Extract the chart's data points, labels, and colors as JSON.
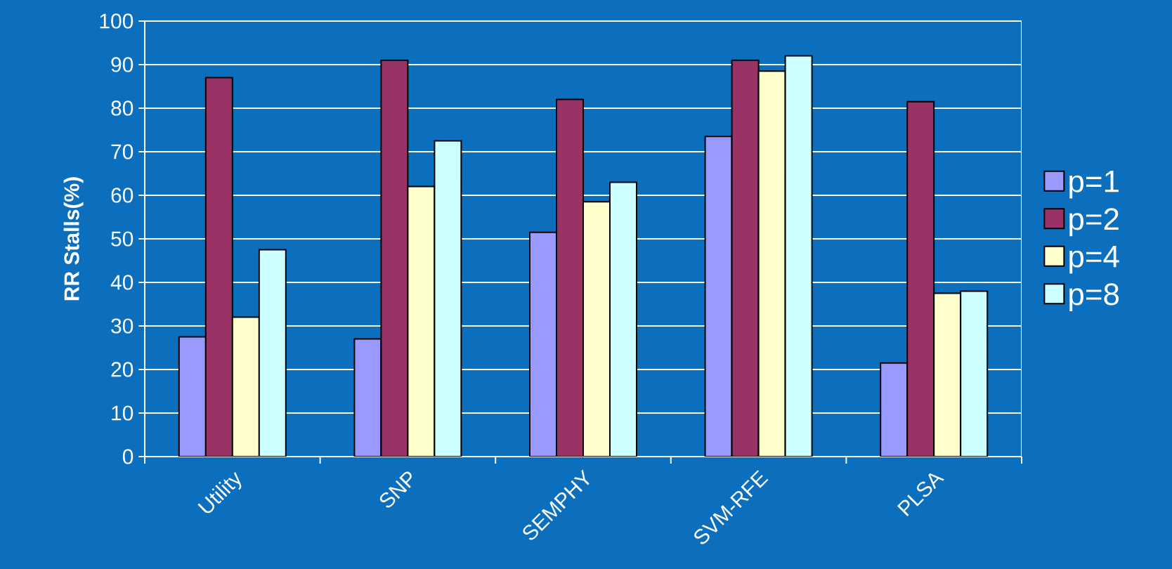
{
  "chart_data": {
    "type": "bar",
    "ylabel": "RR Stalls(%)",
    "categories": [
      "Utility",
      "SNP",
      "SEMPHY",
      "SVM-RFE",
      "PLSA"
    ],
    "series": [
      {
        "name": "p=1",
        "color": "#9999ff",
        "values": [
          27.5,
          27,
          51.5,
          73.5,
          21.5
        ]
      },
      {
        "name": "p=2",
        "color": "#993366",
        "values": [
          87,
          91,
          82,
          91,
          81.5
        ]
      },
      {
        "name": "p=4",
        "color": "#ffffcc",
        "values": [
          32,
          62,
          58.5,
          88.5,
          37.5
        ]
      },
      {
        "name": "p=8",
        "color": "#ccffff",
        "values": [
          47.5,
          72.5,
          63,
          92,
          38
        ]
      }
    ],
    "ylim": [
      0,
      100
    ],
    "yticks": [
      0,
      10,
      20,
      30,
      40,
      50,
      60,
      70,
      80,
      90,
      100
    ],
    "grid": "y",
    "legend": "right"
  }
}
